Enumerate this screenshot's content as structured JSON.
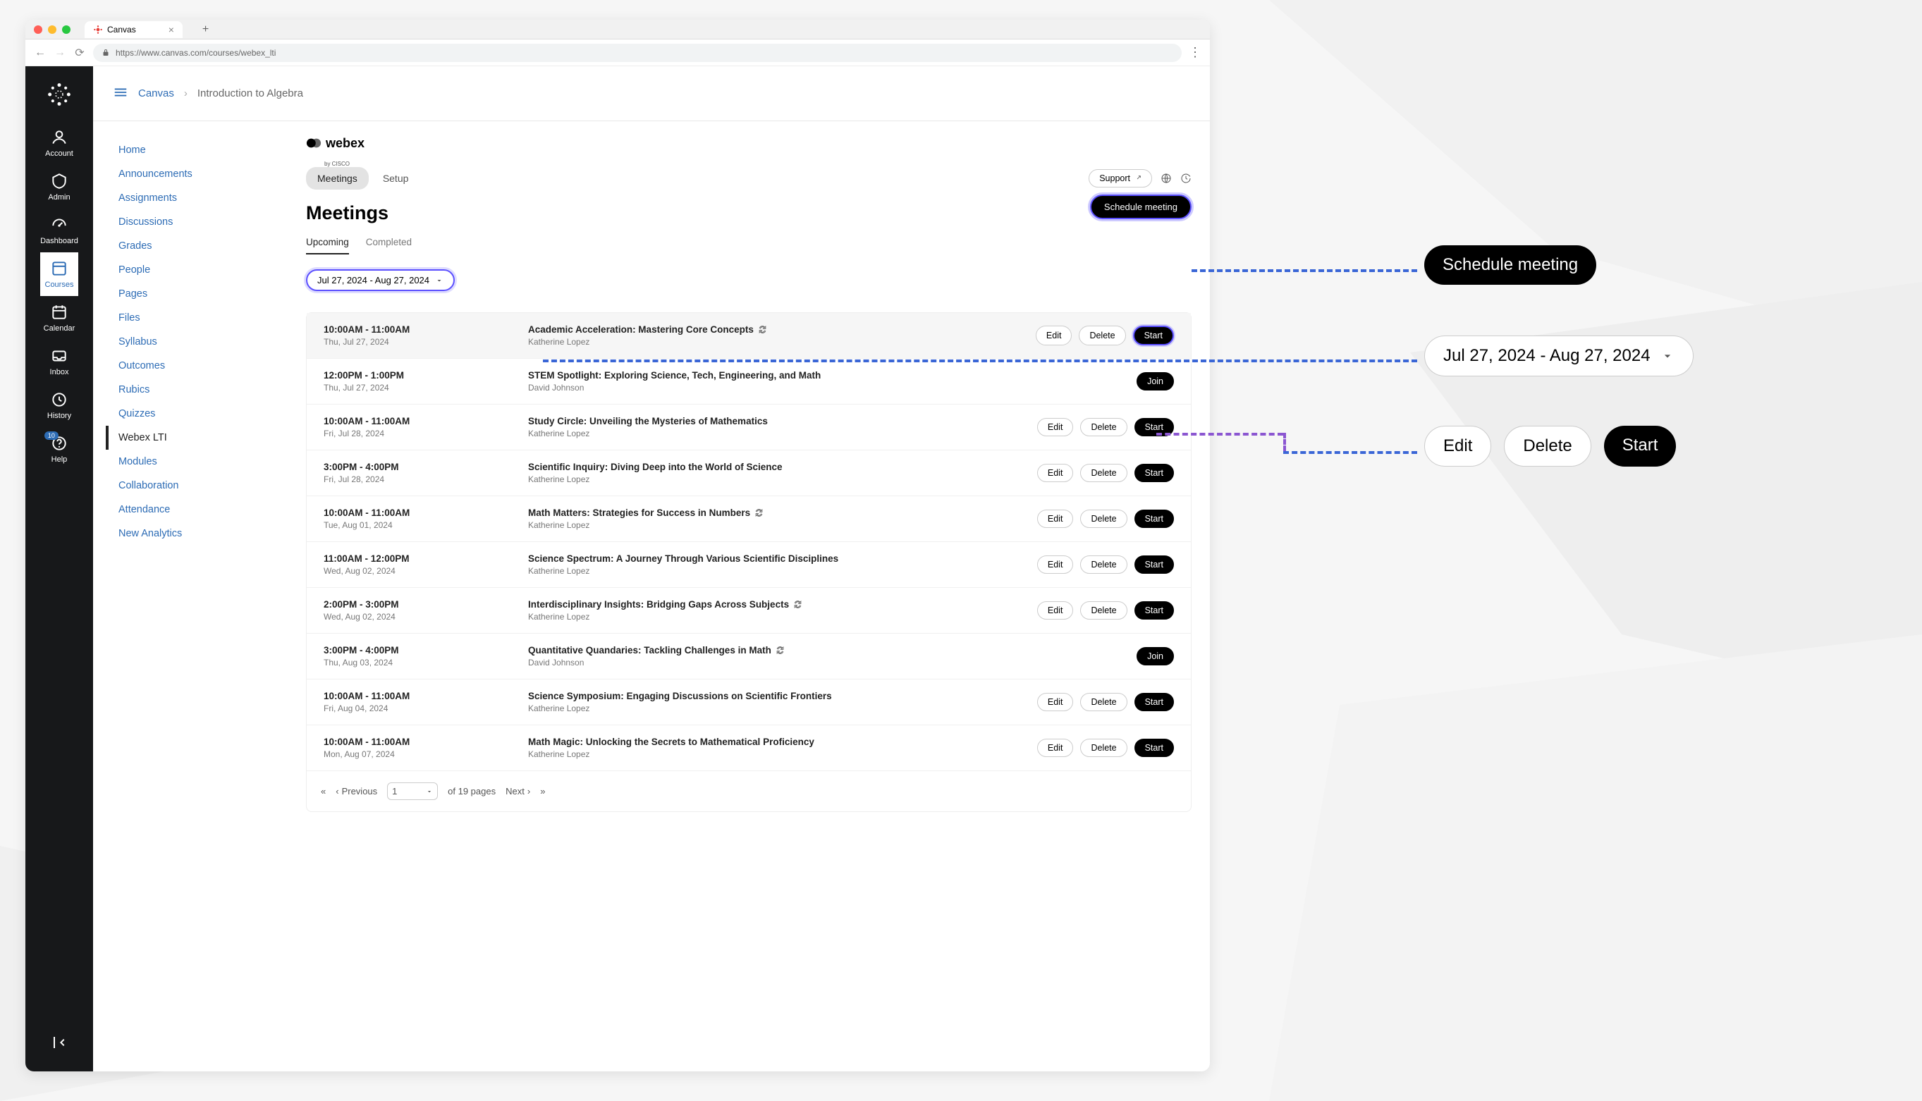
{
  "browser": {
    "tab_title": "Canvas",
    "url": "https://www.canvas.com/courses/webex_lti"
  },
  "global_nav": {
    "items": [
      "Account",
      "Admin",
      "Dashboard",
      "Courses",
      "Calendar",
      "Inbox",
      "History",
      "Help"
    ],
    "active_index": 3,
    "badge_index": 7,
    "badge_value": "10"
  },
  "breadcrumb": {
    "root": "Canvas",
    "current": "Introduction to Algebra"
  },
  "course_nav": {
    "items": [
      "Home",
      "Announcements",
      "Assignments",
      "Discussions",
      "Grades",
      "People",
      "Pages",
      "Files",
      "Syllabus",
      "Outcomes",
      "Rubics",
      "Quizzes",
      "Webex LTI",
      "Modules",
      "Collaboration",
      "Attendance",
      "New Analytics"
    ],
    "active_index": 12
  },
  "webex": {
    "brand": "webex",
    "brand_sub": "by CISCO",
    "tabs": {
      "meetings": "Meetings",
      "setup": "Setup"
    },
    "support": "Support",
    "page_title": "Meetings",
    "schedule_btn": "Schedule meeting",
    "sub_tabs": {
      "upcoming": "Upcoming",
      "completed": "Completed"
    },
    "date_range": "Jul 27, 2024 - Aug 27, 2024",
    "meetings": [
      {
        "time": "10:00AM - 11:00AM",
        "date": "Thu, Jul 27, 2024",
        "title": "Academic Acceleration: Mastering Core Concepts",
        "host": "Katherine Lopez",
        "recurring": true,
        "actions": [
          "Edit",
          "Delete",
          "Start"
        ],
        "highlight": true,
        "action_highlight": 2
      },
      {
        "time": "12:00PM - 1:00PM",
        "date": "Thu, Jul 27, 2024",
        "title": "STEM Spotlight: Exploring Science, Tech, Engineering, and Math",
        "host": "David Johnson",
        "recurring": false,
        "actions": [
          "Join"
        ]
      },
      {
        "time": "10:00AM - 11:00AM",
        "date": "Fri, Jul 28, 2024",
        "title": "Study Circle: Unveiling the Mysteries of Mathematics",
        "host": "Katherine Lopez",
        "recurring": false,
        "actions": [
          "Edit",
          "Delete",
          "Start"
        ]
      },
      {
        "time": "3:00PM - 4:00PM",
        "date": "Fri, Jul 28, 2024",
        "title": "Scientific Inquiry: Diving Deep into the World of Science",
        "host": "Katherine Lopez",
        "recurring": false,
        "actions": [
          "Edit",
          "Delete",
          "Start"
        ]
      },
      {
        "time": "10:00AM - 11:00AM",
        "date": "Tue, Aug 01, 2024",
        "title": "Math Matters: Strategies for Success in Numbers",
        "host": "Katherine Lopez",
        "recurring": true,
        "actions": [
          "Edit",
          "Delete",
          "Start"
        ]
      },
      {
        "time": "11:00AM - 12:00PM",
        "date": "Wed, Aug 02, 2024",
        "title": "Science Spectrum: A Journey Through Various Scientific Disciplines",
        "host": "Katherine Lopez",
        "recurring": false,
        "actions": [
          "Edit",
          "Delete",
          "Start"
        ]
      },
      {
        "time": "2:00PM - 3:00PM",
        "date": "Wed, Aug 02, 2024",
        "title": "Interdisciplinary Insights: Bridging Gaps Across Subjects",
        "host": "Katherine Lopez",
        "recurring": true,
        "actions": [
          "Edit",
          "Delete",
          "Start"
        ]
      },
      {
        "time": "3:00PM - 4:00PM",
        "date": "Thu, Aug 03, 2024",
        "title": "Quantitative Quandaries: Tackling Challenges in Math",
        "host": "David Johnson",
        "recurring": true,
        "actions": [
          "Join"
        ]
      },
      {
        "time": "10:00AM - 11:00AM",
        "date": "Fri, Aug 04, 2024",
        "title": "Science Symposium: Engaging Discussions on Scientific Frontiers",
        "host": "Katherine Lopez",
        "recurring": false,
        "actions": [
          "Edit",
          "Delete",
          "Start"
        ]
      },
      {
        "time": "10:00AM - 11:00AM",
        "date": "Mon, Aug 07, 2024",
        "title": "Math Magic: Unlocking the Secrets to Mathematical Proficiency",
        "host": "Katherine Lopez",
        "recurring": false,
        "actions": [
          "Edit",
          "Delete",
          "Start"
        ]
      }
    ],
    "pager": {
      "previous": "Previous",
      "next": "Next",
      "page": "1",
      "of_text": "of 19 pages"
    }
  },
  "callouts": {
    "schedule": "Schedule meeting",
    "date_range": "Jul 27, 2024 - Aug 27, 2024",
    "edit": "Edit",
    "delete": "Delete",
    "start": "Start"
  },
  "colors": {
    "dash_blue": "#3a66d6",
    "dash_purple": "#8b56d1",
    "highlight_ring": "#5b4fff"
  }
}
